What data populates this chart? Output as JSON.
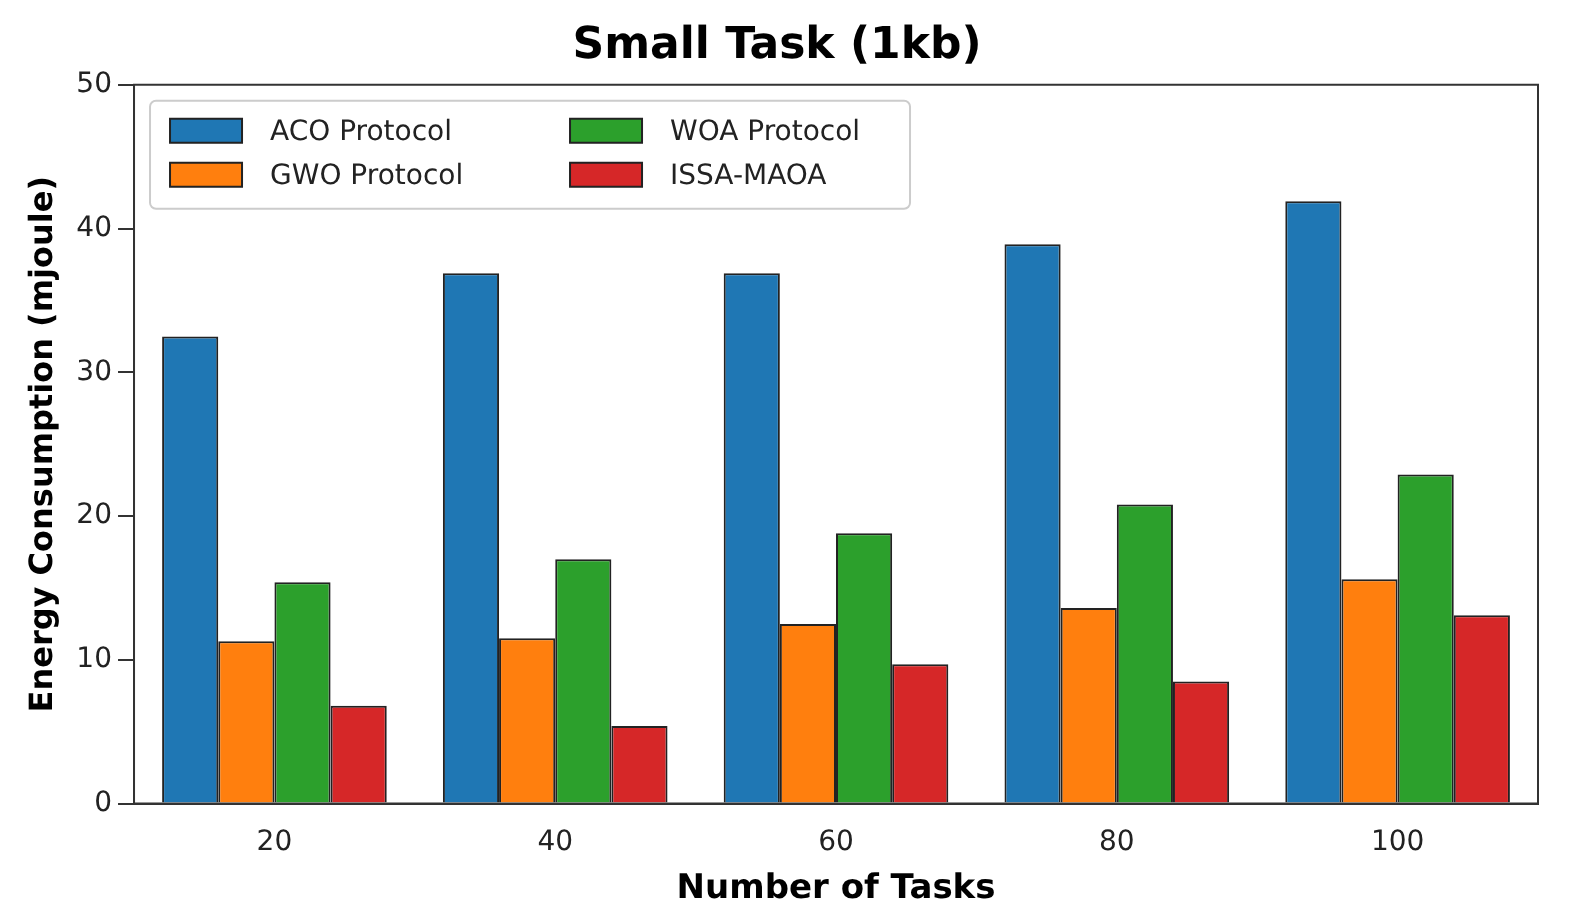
{
  "chart_data": {
    "type": "bar",
    "title": "Small Task (1kb)",
    "xlabel": "Number of Tasks",
    "ylabel": "Energy Consumption (mjoule)",
    "categories": [
      "20",
      "40",
      "60",
      "80",
      "100"
    ],
    "series": [
      {
        "name": "ACO Protocol",
        "color": "#1f77b4",
        "values": [
          32.5,
          36.9,
          36.9,
          38.9,
          41.9
        ]
      },
      {
        "name": "GWO Protocol",
        "color": "#ff7f0e",
        "values": [
          11.3,
          11.5,
          12.5,
          13.6,
          15.6
        ]
      },
      {
        "name": "WOA Protocol",
        "color": "#2ca02c",
        "values": [
          15.4,
          17.0,
          18.8,
          20.8,
          22.9
        ]
      },
      {
        "name": "ISSA-MAOA",
        "color": "#d62728",
        "values": [
          6.8,
          5.4,
          9.7,
          8.5,
          13.1
        ]
      }
    ],
    "ylim": [
      0,
      50
    ],
    "yticks": [
      0,
      10,
      20,
      30,
      40,
      50
    ],
    "grid": false,
    "legend": "top left"
  }
}
